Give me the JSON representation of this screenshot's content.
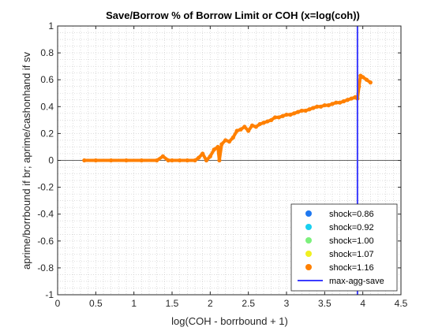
{
  "chart_data": {
    "type": "scatter",
    "title": "Save/Borrow % of Borrow Limit or COH (x=log(coh))",
    "xlabel": "log(COH - borrbound + 1)",
    "ylabel": "aprime/borrbound if br; aprime/cashonhand if sv",
    "xlim": [
      0,
      4.5
    ],
    "ylim": [
      -1,
      1
    ],
    "x_ticks": [
      "0",
      "0.5",
      "1",
      "1.5",
      "2",
      "2.5",
      "3",
      "3.5",
      "4",
      "4.5"
    ],
    "y_ticks": [
      "-1",
      "-0.8",
      "-0.6",
      "-0.4",
      "-0.2",
      "0",
      "0.2",
      "0.4",
      "0.6",
      "0.8",
      "1"
    ],
    "grid": "minor dotted",
    "legend_position": "bottom-right",
    "series": [
      {
        "name": "shock=0.86",
        "color": "#1f78f0",
        "x": [],
        "y": []
      },
      {
        "name": "shock=0.92",
        "color": "#19d0f0",
        "x": [],
        "y": []
      },
      {
        "name": "shock=1.00",
        "color": "#7cf07c",
        "x": [],
        "y": []
      },
      {
        "name": "shock=1.07",
        "color": "#f0f020",
        "x": [],
        "y": []
      },
      {
        "name": "shock=1.16",
        "color": "#ff8000",
        "x": [
          0.35,
          0.5,
          0.7,
          0.9,
          1.1,
          1.3,
          1.38,
          1.45,
          1.5,
          1.6,
          1.7,
          1.8,
          1.85,
          1.9,
          1.95,
          2.0,
          2.05,
          2.1,
          2.12,
          2.15,
          2.2,
          2.25,
          2.3,
          2.35,
          2.4,
          2.45,
          2.5,
          2.55,
          2.6,
          2.65,
          2.7,
          2.75,
          2.8,
          2.85,
          2.9,
          2.95,
          3.0,
          3.05,
          3.1,
          3.15,
          3.2,
          3.25,
          3.3,
          3.35,
          3.4,
          3.45,
          3.5,
          3.55,
          3.6,
          3.65,
          3.7,
          3.75,
          3.8,
          3.85,
          3.9,
          3.93,
          3.95,
          3.97,
          4.0,
          4.05,
          4.1
        ],
        "y": [
          0.0,
          0.0,
          0.0,
          0.0,
          0.0,
          0.0,
          0.03,
          0.0,
          0.0,
          0.0,
          0.0,
          0.0,
          0.02,
          0.05,
          0.0,
          0.03,
          0.08,
          0.1,
          0.0,
          0.12,
          0.15,
          0.14,
          0.17,
          0.22,
          0.23,
          0.25,
          0.22,
          0.26,
          0.25,
          0.27,
          0.28,
          0.29,
          0.3,
          0.32,
          0.32,
          0.33,
          0.34,
          0.34,
          0.35,
          0.36,
          0.37,
          0.37,
          0.38,
          0.39,
          0.4,
          0.4,
          0.41,
          0.41,
          0.42,
          0.43,
          0.43,
          0.44,
          0.45,
          0.46,
          0.47,
          0.46,
          0.55,
          0.63,
          0.62,
          0.6,
          0.58
        ]
      }
    ],
    "vline": {
      "name": "max-agg-save",
      "x": 3.93,
      "color": "#3b3bff"
    },
    "zero_line": true
  }
}
